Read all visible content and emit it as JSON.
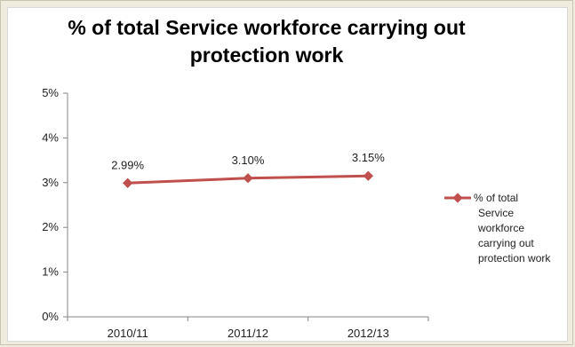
{
  "chart_data": {
    "type": "line",
    "title": "% of total Service workforce carrying out protection work",
    "xlabel": "",
    "ylabel": "",
    "categories": [
      "2010/11",
      "2011/12",
      "2012/13"
    ],
    "ylim": [
      0,
      5
    ],
    "yticks": [
      "0%",
      "1%",
      "2%",
      "3%",
      "4%",
      "5%"
    ],
    "series": [
      {
        "name": "% of total Service workforce carrying out protection work",
        "values": [
          2.99,
          3.1,
          3.15
        ],
        "data_labels": [
          "2.99%",
          "3.10%",
          "3.15%"
        ],
        "color": "#c0504d"
      }
    ],
    "legend": "right",
    "grid": false
  }
}
